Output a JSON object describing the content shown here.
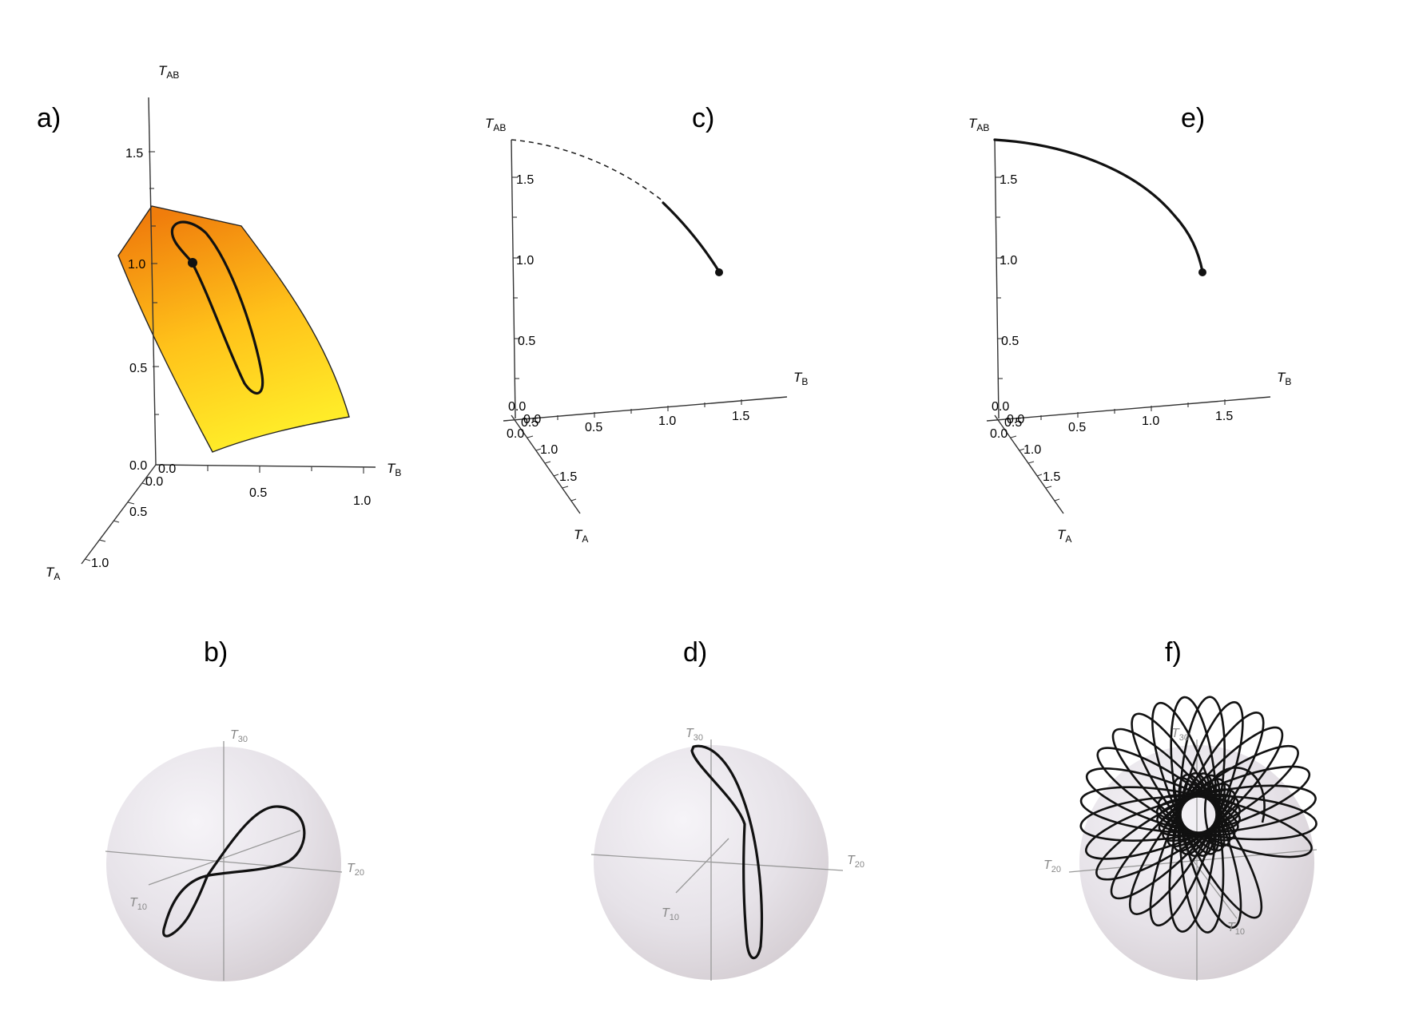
{
  "panels": {
    "a": {
      "label": "a)",
      "axes": {
        "x": {
          "name": "T",
          "sub": "A",
          "ticks": [
            "0.0",
            "0.5",
            "1.0"
          ]
        },
        "y": {
          "name": "T",
          "sub": "B",
          "ticks": [
            "0.0",
            "0.5",
            "1.0"
          ]
        },
        "z": {
          "name": "T",
          "sub": "AB",
          "ticks": [
            "0.0",
            "0.5",
            "1.0",
            "1.5"
          ]
        }
      },
      "colors": {
        "surface_top": "#f08a10",
        "surface_bottom": "#ffe820"
      }
    },
    "b": {
      "label": "b)",
      "axes": {
        "x": {
          "name": "T",
          "sub": "10"
        },
        "y": {
          "name": "T",
          "sub": "20"
        },
        "z": {
          "name": "T",
          "sub": "30"
        }
      }
    },
    "c": {
      "label": "c)",
      "axes": {
        "x": {
          "name": "T",
          "sub": "A",
          "ticks": [
            "0.0",
            "0.5",
            "1.0",
            "1.5"
          ]
        },
        "y": {
          "name": "T",
          "sub": "B",
          "ticks": [
            "0.0",
            "0.5",
            "1.0",
            "1.5"
          ]
        },
        "z": {
          "name": "T",
          "sub": "AB",
          "ticks": [
            "0.0",
            "0.5",
            "1.0",
            "1.5"
          ]
        }
      }
    },
    "d": {
      "label": "d)",
      "axes": {
        "x": {
          "name": "T",
          "sub": "10"
        },
        "y": {
          "name": "T",
          "sub": "20"
        },
        "z": {
          "name": "T",
          "sub": "30"
        }
      }
    },
    "e": {
      "label": "e)",
      "axes": {
        "x": {
          "name": "T",
          "sub": "A",
          "ticks": [
            "0.0",
            "0.5",
            "1.0",
            "1.5"
          ]
        },
        "y": {
          "name": "T",
          "sub": "B",
          "ticks": [
            "0.0",
            "0.5",
            "1.0",
            "1.5"
          ]
        },
        "z": {
          "name": "T",
          "sub": "AB",
          "ticks": [
            "0.0",
            "0.5",
            "1.0",
            "1.5"
          ]
        }
      }
    },
    "f": {
      "label": "f)",
      "axes": {
        "x": {
          "name": "T",
          "sub": "10"
        },
        "y": {
          "name": "T",
          "sub": "20"
        },
        "z": {
          "name": "T",
          "sub": "30"
        }
      }
    }
  }
}
